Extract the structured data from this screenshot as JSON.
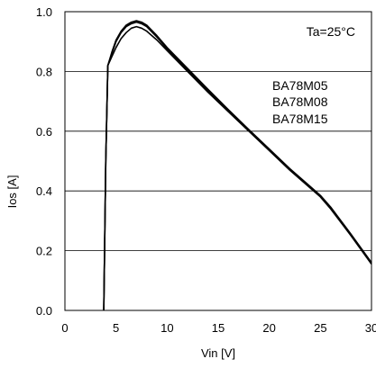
{
  "chart_data": {
    "type": "line",
    "title": "",
    "xlabel": "Vin [V]",
    "ylabel": "Ios [A]",
    "xlim": [
      0,
      30
    ],
    "ylim": [
      0.0,
      1.0
    ],
    "xticks": [
      "0",
      "5",
      "10",
      "15",
      "20",
      "25",
      "30"
    ],
    "yticks": [
      "0.0",
      "0.2",
      "0.4",
      "0.6",
      "0.8",
      "1.0"
    ],
    "grid": "horizontal",
    "annotation": "Ta=25°C",
    "legend": [
      "BA78M05",
      "BA78M08",
      "BA78M15"
    ],
    "legend_position": "center-right",
    "series": [
      {
        "name": "BA78M05",
        "x": [
          3.8,
          4.0,
          4.2,
          4.6,
          5.0,
          5.5,
          6.0,
          6.5,
          7.0,
          7.5,
          8.0,
          9.0,
          10.0,
          12.0,
          14.0,
          16.0,
          18.0,
          20.0,
          22.0,
          24.0,
          25.0,
          26.0,
          28.0,
          30.0
        ],
        "y": [
          0.0,
          0.5,
          0.82,
          0.85,
          0.88,
          0.91,
          0.93,
          0.945,
          0.95,
          0.945,
          0.935,
          0.905,
          0.87,
          0.8,
          0.73,
          0.665,
          0.6,
          0.535,
          0.47,
          0.41,
          0.38,
          0.34,
          0.25,
          0.155
        ]
      },
      {
        "name": "BA78M08",
        "x": [
          3.8,
          4.0,
          4.2,
          4.6,
          5.0,
          5.5,
          6.0,
          6.5,
          7.0,
          7.5,
          8.0,
          9.0,
          10.0,
          12.0,
          14.0,
          16.0,
          18.0,
          20.0,
          22.0,
          24.0,
          25.0,
          26.0,
          28.0,
          30.0
        ],
        "y": [
          0.0,
          0.5,
          0.82,
          0.86,
          0.9,
          0.93,
          0.95,
          0.96,
          0.965,
          0.96,
          0.95,
          0.915,
          0.875,
          0.805,
          0.735,
          0.668,
          0.602,
          0.537,
          0.472,
          0.412,
          0.382,
          0.343,
          0.252,
          0.158
        ]
      },
      {
        "name": "BA78M15",
        "x": [
          3.8,
          4.0,
          4.2,
          4.6,
          5.0,
          5.5,
          6.0,
          6.5,
          7.0,
          7.5,
          8.0,
          9.0,
          10.0,
          12.0,
          14.0,
          16.0,
          18.0,
          20.0,
          22.0,
          24.0,
          25.0,
          26.0,
          28.0,
          30.0
        ],
        "y": [
          0.0,
          0.5,
          0.82,
          0.865,
          0.905,
          0.935,
          0.955,
          0.965,
          0.97,
          0.965,
          0.955,
          0.92,
          0.88,
          0.81,
          0.74,
          0.672,
          0.605,
          0.54,
          0.475,
          0.415,
          0.385,
          0.346,
          0.255,
          0.16
        ]
      }
    ]
  }
}
